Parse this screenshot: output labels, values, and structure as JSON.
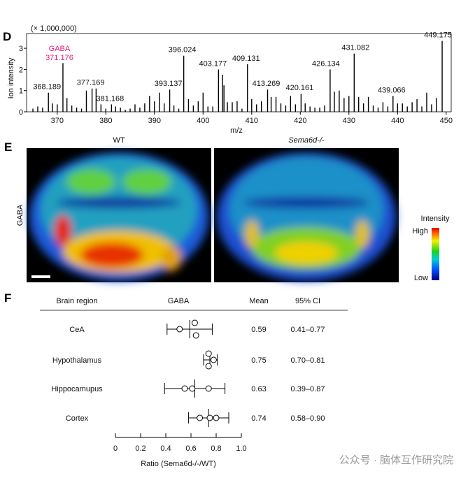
{
  "panels": {
    "d": "D",
    "e": "E",
    "f": "F"
  },
  "watermark": "公众号 · 脑体互作研究院",
  "chart_data": [
    {
      "type": "bar",
      "title": "",
      "multiplier_label": "(× 1,000,000)",
      "xlabel": "m/z",
      "ylabel": "Ion intensity",
      "xlim": [
        363.7,
        451
      ],
      "ylim": [
        0,
        3.4
      ],
      "xticks": [
        370,
        380,
        390,
        400,
        410,
        420,
        430,
        440,
        450
      ],
      "yticks": [
        0,
        1,
        2,
        3
      ],
      "highlight": {
        "label": "GABA",
        "mz": "371.176",
        "color": "#e6197a"
      },
      "peaks": [
        [
          365,
          0.15
        ],
        [
          366,
          0.25
        ],
        [
          367,
          0.2
        ],
        [
          368.189,
          0.9
        ],
        [
          369,
          0.4
        ],
        [
          370,
          0.35
        ],
        [
          371.176,
          2.3
        ],
        [
          372,
          0.65
        ],
        [
          373,
          0.3
        ],
        [
          374,
          0.2
        ],
        [
          375,
          0.15
        ],
        [
          376,
          1.0
        ],
        [
          377.169,
          1.1
        ],
        [
          378,
          1.1
        ],
        [
          379,
          0.35
        ],
        [
          380,
          0.15
        ],
        [
          381.168,
          0.35
        ],
        [
          382,
          0.25
        ],
        [
          383,
          0.2
        ],
        [
          384,
          0.1
        ],
        [
          385,
          0.15
        ],
        [
          386,
          0.35
        ],
        [
          387,
          0.2
        ],
        [
          388,
          0.4
        ],
        [
          389,
          0.75
        ],
        [
          390,
          0.5
        ],
        [
          391,
          0.9
        ],
        [
          392,
          0.4
        ],
        [
          393.137,
          1.05
        ],
        [
          394,
          0.3
        ],
        [
          395,
          0.15
        ],
        [
          396.024,
          2.65
        ],
        [
          397,
          0.6
        ],
        [
          398,
          0.3
        ],
        [
          399,
          0.5
        ],
        [
          400,
          0.9
        ],
        [
          401,
          0.25
        ],
        [
          402,
          0.25
        ],
        [
          403.177,
          2.0
        ],
        [
          404,
          1.75
        ],
        [
          404.3,
          1.25
        ],
        [
          405,
          0.45
        ],
        [
          406,
          0.45
        ],
        [
          407,
          0.5
        ],
        [
          408,
          0.15
        ],
        [
          409.131,
          2.25
        ],
        [
          410,
          0.6
        ],
        [
          411,
          0.35
        ],
        [
          412,
          0.5
        ],
        [
          413.269,
          1.05
        ],
        [
          414,
          0.7
        ],
        [
          415,
          0.7
        ],
        [
          416,
          0.4
        ],
        [
          417,
          0.3
        ],
        [
          418,
          0.75
        ],
        [
          419,
          0.35
        ],
        [
          420.161,
          0.85
        ],
        [
          421,
          0.4
        ],
        [
          422,
          0.25
        ],
        [
          423,
          0.2
        ],
        [
          424,
          0.2
        ],
        [
          425,
          0.3
        ],
        [
          426.134,
          2.0
        ],
        [
          427,
          0.95
        ],
        [
          428,
          1.0
        ],
        [
          429,
          0.65
        ],
        [
          430,
          0.75
        ],
        [
          431.082,
          2.75
        ],
        [
          432,
          0.7
        ],
        [
          433,
          0.4
        ],
        [
          434,
          0.7
        ],
        [
          435,
          0.3
        ],
        [
          436,
          0.2
        ],
        [
          437,
          0.45
        ],
        [
          438,
          0.25
        ],
        [
          439.066,
          0.75
        ],
        [
          440,
          0.4
        ],
        [
          441,
          0.4
        ],
        [
          442,
          0.25
        ],
        [
          443,
          0.45
        ],
        [
          444,
          0.6
        ],
        [
          445,
          0.25
        ],
        [
          446,
          0.9
        ],
        [
          447,
          0.35
        ],
        [
          448,
          0.65
        ],
        [
          449.175,
          3.35
        ]
      ],
      "labels": [
        {
          "mz": 368.189,
          "text": "368.189"
        },
        {
          "mz": 377.169,
          "text": "377.169"
        },
        {
          "mz": 381.168,
          "text": "381.168"
        },
        {
          "mz": 393.137,
          "text": "393.137"
        },
        {
          "mz": 396.024,
          "text": "396.024"
        },
        {
          "mz": 403.177,
          "text": "403.177"
        },
        {
          "mz": 409.131,
          "text": "409.131"
        },
        {
          "mz": 413.269,
          "text": "413.269"
        },
        {
          "mz": 420.161,
          "text": "420.161"
        },
        {
          "mz": 426.134,
          "text": "426.134"
        },
        {
          "mz": 431.082,
          "text": "431.082"
        },
        {
          "mz": 439.066,
          "text": "439.066"
        },
        {
          "mz": 449.175,
          "text": "449.175"
        }
      ]
    },
    {
      "type": "heatmap",
      "titles": [
        "WT",
        "Sema6d-/-"
      ],
      "ylabel": "GABA",
      "colorbar": {
        "title": "Intensity",
        "high": "High",
        "low": "Low"
      }
    },
    {
      "type": "scatter",
      "subtype": "forest",
      "headers": [
        "Brain region",
        "GABA",
        "Mean",
        "95% CI"
      ],
      "xlabel": "Ratio (Sema6d-/-/WT)",
      "xlim": [
        0,
        1.0
      ],
      "xticks": [
        "0",
        "0.2",
        "0.4",
        "0.6",
        "0.8",
        "1.0"
      ],
      "rows": [
        {
          "region": "CeA",
          "points": [
            0.51,
            0.63,
            0.64
          ],
          "mean": 0.59,
          "ci": [
            0.41,
            0.77
          ],
          "mean_text": "0.59",
          "ci_text": "0.41–0.77"
        },
        {
          "region": "Hypothalamus",
          "points": [
            0.74,
            0.78,
            0.74
          ],
          "mean": 0.75,
          "ci": [
            0.7,
            0.81
          ],
          "mean_text": "0.75",
          "ci_text": "0.70–0.81"
        },
        {
          "region": "Hippocamupus",
          "points": [
            0.55,
            0.61,
            0.74
          ],
          "mean": 0.63,
          "ci": [
            0.39,
            0.87
          ],
          "mean_text": "0.63",
          "ci_text": "0.39–0.87"
        },
        {
          "region": "Cortex",
          "points": [
            0.67,
            0.75,
            0.8
          ],
          "mean": 0.74,
          "ci": [
            0.58,
            0.9
          ],
          "mean_text": "0.74",
          "ci_text": "0.58–0.90"
        }
      ]
    }
  ]
}
